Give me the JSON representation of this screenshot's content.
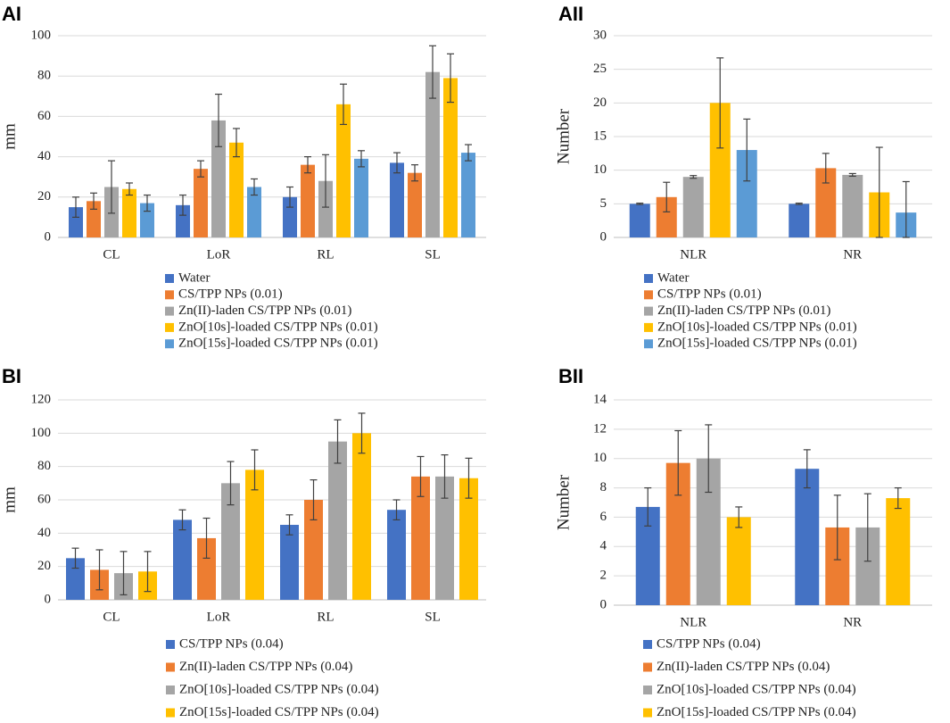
{
  "chart_data": [
    {
      "panel_label": "AI",
      "type": "bar",
      "categories": [
        "CL",
        "LoR",
        "RL",
        "SL"
      ],
      "ylabel": "mm",
      "ylim": [
        0,
        100
      ],
      "yticks": [
        0,
        20,
        40,
        60,
        80,
        100
      ],
      "series": [
        {
          "name": "Water",
          "color": "#4472C4",
          "values": [
            15,
            16,
            20,
            37
          ],
          "errors": [
            5,
            5,
            5,
            5
          ]
        },
        {
          "name": "CS/TPP NPs (0.01)",
          "color": "#ED7D31",
          "values": [
            18,
            34,
            36,
            32
          ],
          "errors": [
            4,
            4,
            4,
            4
          ]
        },
        {
          "name": "Zn(II)-laden CS/TPP NPs  (0.01)",
          "color": "#A5A5A5",
          "values": [
            25,
            58,
            28,
            82
          ],
          "errors": [
            13,
            13,
            13,
            13
          ]
        },
        {
          "name": "ZnO[10s]-loaded CS/TPP NPs  (0.01)",
          "color": "#FFC000",
          "values": [
            24,
            47,
            66,
            79
          ],
          "errors": [
            3,
            7,
            10,
            12
          ]
        },
        {
          "name": "ZnO[15s]-loaded CS/TPP NPs  (0.01)",
          "color": "#5B9BD5",
          "values": [
            17,
            25,
            39,
            42
          ],
          "errors": [
            4,
            4,
            4,
            4
          ]
        }
      ]
    },
    {
      "panel_label": "AII",
      "type": "bar",
      "categories": [
        "NLR",
        "NR"
      ],
      "ylabel": "Number",
      "ylim": [
        0,
        30
      ],
      "yticks": [
        0,
        5,
        10,
        15,
        20,
        25,
        30
      ],
      "series": [
        {
          "name": "Water",
          "color": "#4472C4",
          "values": [
            5,
            5
          ],
          "errors": [
            0.1,
            0.1
          ]
        },
        {
          "name": "CS/TPP NPs (0.01)",
          "color": "#ED7D31",
          "values": [
            6,
            10.3
          ],
          "errors": [
            2.2,
            2.2
          ]
        },
        {
          "name": "Zn(II)-laden CS/TPP NPs  (0.01)",
          "color": "#A5A5A5",
          "values": [
            9,
            9.3
          ],
          "errors": [
            0.2,
            0.2
          ]
        },
        {
          "name": "ZnO[10s]-loaded CS/TPP NPs  (0.01)",
          "color": "#FFC000",
          "values": [
            20,
            6.7
          ],
          "errors": [
            6.7,
            6.7
          ]
        },
        {
          "name": "ZnO[15s]-loaded CS/TPP NPs  (0.01)",
          "color": "#5B9BD5",
          "values": [
            13,
            3.7
          ],
          "errors": [
            4.6,
            4.6
          ]
        }
      ]
    },
    {
      "panel_label": "BI",
      "type": "bar",
      "categories": [
        "CL",
        "LoR",
        "RL",
        "SL"
      ],
      "ylabel": "mm",
      "ylim": [
        0,
        120
      ],
      "yticks": [
        0,
        20,
        40,
        60,
        80,
        100,
        120
      ],
      "series": [
        {
          "name": "CS/TPP NPs (0.04)",
          "color": "#4472C4",
          "values": [
            25,
            48,
            45,
            54
          ],
          "errors": [
            6,
            6,
            6,
            6
          ]
        },
        {
          "name": "Zn(II)-laden CS/TPP NPs (0.04)",
          "color": "#ED7D31",
          "values": [
            18,
            37,
            60,
            74
          ],
          "errors": [
            12,
            12,
            12,
            12
          ]
        },
        {
          "name": "ZnO[10s]-loaded CS/TPP NPs (0.04)",
          "color": "#A5A5A5",
          "values": [
            16,
            70,
            95,
            74
          ],
          "errors": [
            13,
            13,
            13,
            13
          ]
        },
        {
          "name": "ZnO[15s]-loaded CS/TPP NPs (0.04)",
          "color": "#FFC000",
          "values": [
            17,
            78,
            100,
            73
          ],
          "errors": [
            12,
            12,
            12,
            12
          ]
        }
      ]
    },
    {
      "panel_label": "BII",
      "type": "bar",
      "categories": [
        "NLR",
        "NR"
      ],
      "ylabel": "Number",
      "ylim": [
        0,
        14
      ],
      "yticks": [
        0,
        2,
        4,
        6,
        8,
        10,
        12,
        14
      ],
      "series": [
        {
          "name": "CS/TPP NPs (0.04)",
          "color": "#4472C4",
          "values": [
            6.7,
            9.3
          ],
          "errors": [
            1.3,
            1.3
          ]
        },
        {
          "name": "Zn(II)-laden CS/TPP NPs (0.04)",
          "color": "#ED7D31",
          "values": [
            9.7,
            5.3
          ],
          "errors": [
            2.2,
            2.2
          ]
        },
        {
          "name": "ZnO[10s]-loaded CS/TPP NPs (0.04)",
          "color": "#A5A5A5",
          "values": [
            10,
            5.3
          ],
          "errors": [
            2.3,
            2.3
          ]
        },
        {
          "name": "ZnO[15s]-loaded CS/TPP NPs (0.04)",
          "color": "#FFC000",
          "values": [
            6,
            7.3
          ],
          "errors": [
            0.7,
            0.7
          ]
        }
      ]
    }
  ]
}
